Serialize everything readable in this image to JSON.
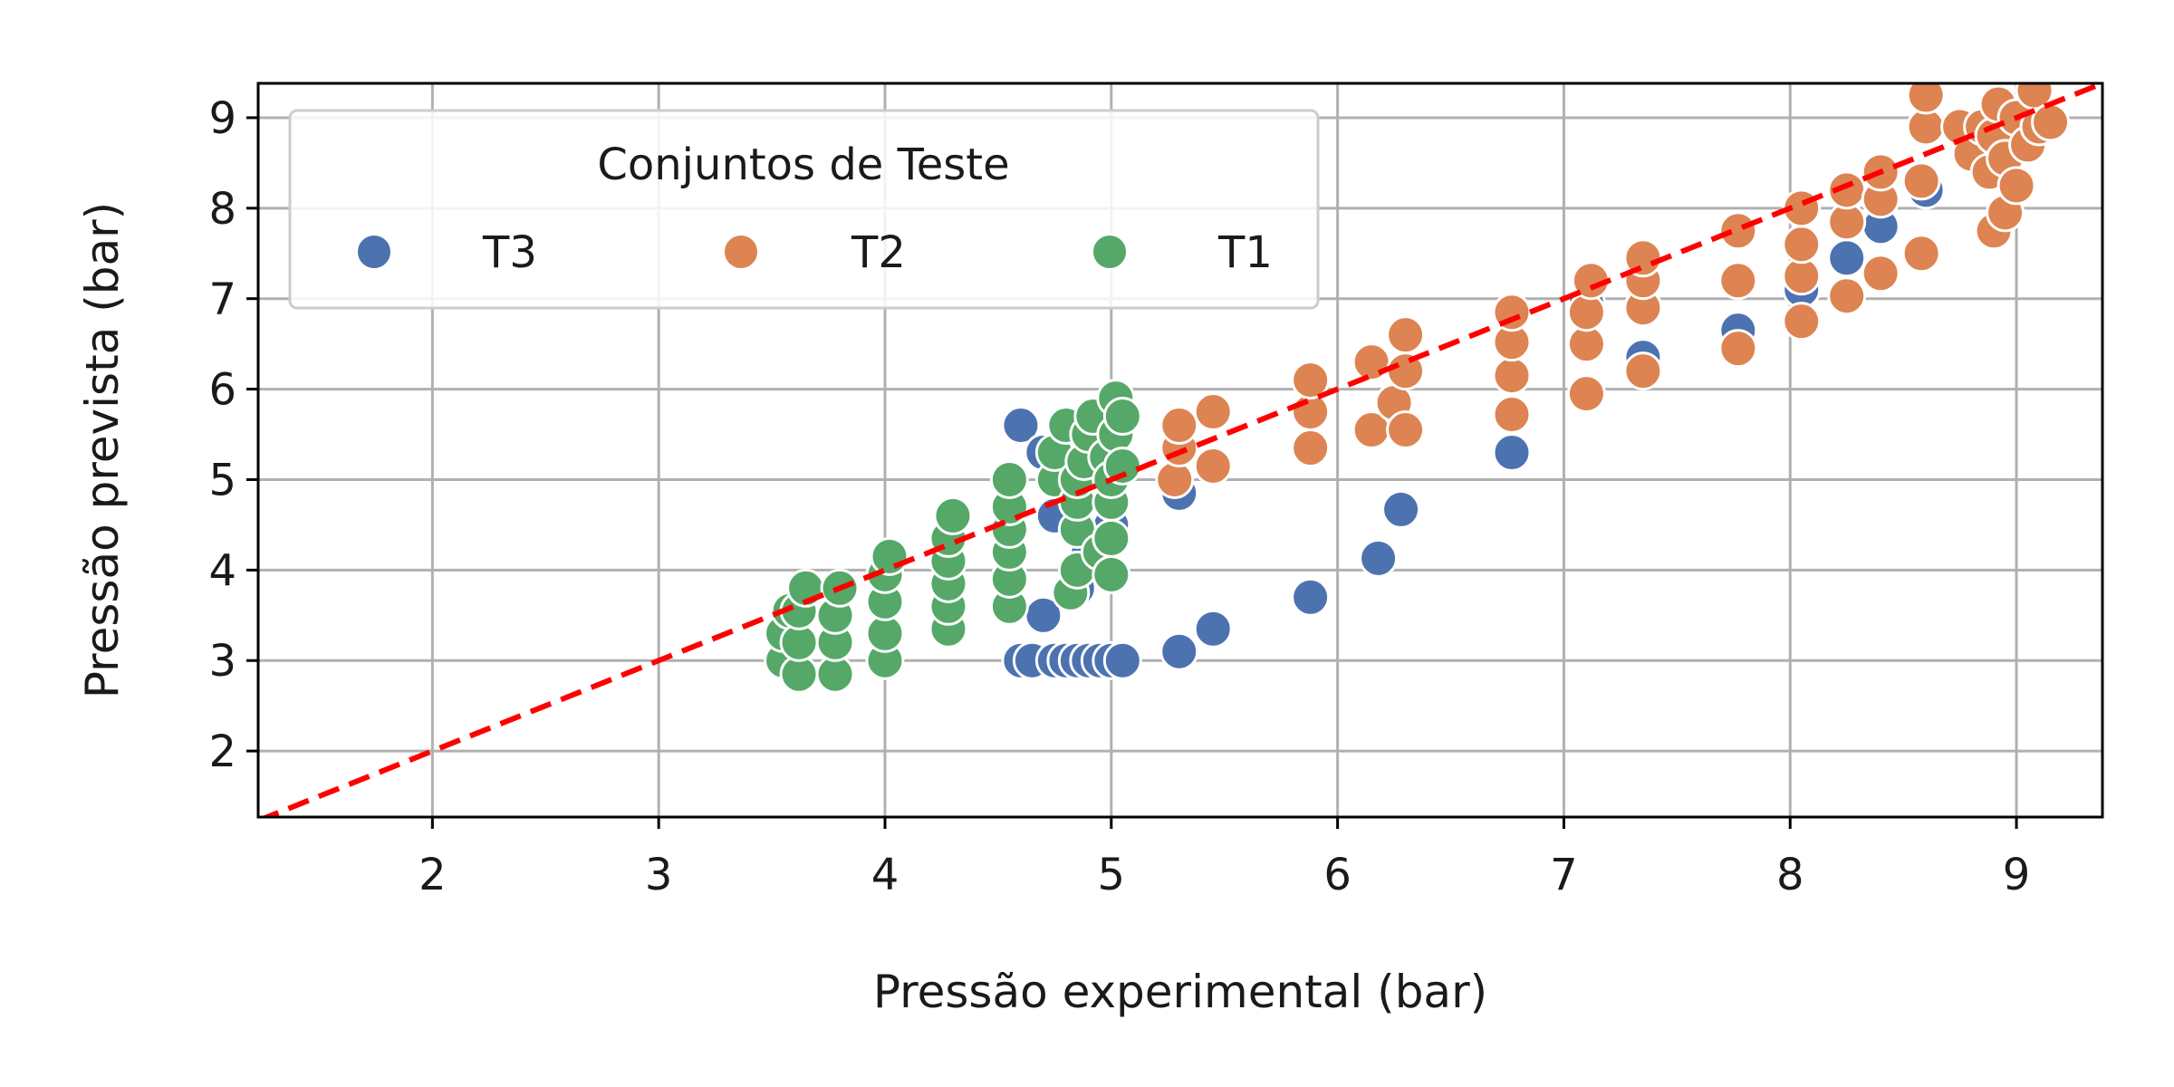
{
  "chart_data": {
    "type": "scatter",
    "title": "",
    "xlabel": "Pressão experimental (bar)",
    "ylabel": "Pressão prevista (bar)",
    "xlim": [
      1.23,
      9.38
    ],
    "ylim": [
      1.27,
      9.38
    ],
    "xticks": [
      "2",
      "3",
      "4",
      "5",
      "6",
      "7",
      "8",
      "9"
    ],
    "yticks": [
      "2",
      "3",
      "4",
      "5",
      "6",
      "7",
      "8",
      "9"
    ],
    "grid": true,
    "legend": {
      "title": "Conjuntos de Teste",
      "placement": "top-left"
    },
    "reference_line": {
      "type": "y=x",
      "style": "dashed",
      "color": "#ff0000"
    },
    "series": [
      {
        "name": "T3",
        "color": "#4c72b0",
        "points": [
          [
            4.6,
            5.6
          ],
          [
            4.6,
            3.0
          ],
          [
            4.65,
            3.0
          ],
          [
            4.7,
            3.5
          ],
          [
            4.75,
            3.0
          ],
          [
            4.75,
            4.6
          ],
          [
            4.8,
            3.0
          ],
          [
            4.85,
            3.0
          ],
          [
            4.9,
            3.0
          ],
          [
            4.95,
            3.0
          ],
          [
            5.0,
            3.0
          ],
          [
            5.05,
            3.0
          ],
          [
            4.85,
            3.8
          ],
          [
            4.9,
            4.2
          ],
          [
            5.0,
            4.5
          ],
          [
            4.7,
            5.3
          ],
          [
            5.3,
            4.85
          ],
          [
            5.3,
            3.1
          ],
          [
            5.45,
            3.35
          ],
          [
            5.88,
            3.7
          ],
          [
            6.18,
            4.13
          ],
          [
            6.28,
            4.67
          ],
          [
            6.77,
            5.3
          ],
          [
            7.1,
            6.95
          ],
          [
            7.35,
            6.35
          ],
          [
            7.77,
            6.65
          ],
          [
            8.05,
            7.1
          ],
          [
            8.25,
            7.45
          ],
          [
            8.4,
            7.8
          ],
          [
            8.6,
            8.2
          ],
          [
            8.9,
            8.45
          ],
          [
            9.0,
            8.7
          ],
          [
            9.1,
            9.05
          ]
        ]
      },
      {
        "name": "T2",
        "color": "#dd8452",
        "points": [
          [
            5.28,
            5.0
          ],
          [
            5.3,
            5.35
          ],
          [
            5.3,
            5.6
          ],
          [
            5.45,
            5.15
          ],
          [
            5.45,
            5.75
          ],
          [
            5.88,
            5.35
          ],
          [
            5.88,
            5.75
          ],
          [
            5.88,
            6.1
          ],
          [
            6.15,
            5.55
          ],
          [
            6.15,
            6.3
          ],
          [
            6.25,
            5.85
          ],
          [
            6.3,
            5.55
          ],
          [
            6.3,
            6.2
          ],
          [
            6.3,
            6.6
          ],
          [
            6.77,
            5.72
          ],
          [
            6.77,
            6.15
          ],
          [
            6.77,
            6.52
          ],
          [
            6.77,
            6.85
          ],
          [
            7.1,
            5.95
          ],
          [
            7.1,
            6.5
          ],
          [
            7.1,
            6.85
          ],
          [
            7.12,
            7.2
          ],
          [
            7.35,
            6.2
          ],
          [
            7.35,
            6.9
          ],
          [
            7.35,
            7.2
          ],
          [
            7.35,
            7.45
          ],
          [
            7.77,
            6.45
          ],
          [
            7.77,
            7.2
          ],
          [
            7.77,
            7.75
          ],
          [
            8.05,
            6.75
          ],
          [
            8.05,
            7.25
          ],
          [
            8.05,
            7.6
          ],
          [
            8.05,
            8.0
          ],
          [
            8.25,
            7.03
          ],
          [
            8.25,
            7.85
          ],
          [
            8.25,
            8.2
          ],
          [
            8.4,
            7.28
          ],
          [
            8.4,
            8.1
          ],
          [
            8.4,
            8.4
          ],
          [
            8.58,
            7.5
          ],
          [
            8.58,
            8.3
          ],
          [
            8.6,
            8.9
          ],
          [
            8.6,
            9.25
          ],
          [
            8.75,
            8.9
          ],
          [
            8.8,
            8.6
          ],
          [
            8.85,
            8.9
          ],
          [
            8.88,
            8.4
          ],
          [
            8.9,
            7.75
          ],
          [
            8.9,
            8.8
          ],
          [
            8.92,
            9.15
          ],
          [
            8.95,
            7.95
          ],
          [
            8.95,
            8.55
          ],
          [
            9.0,
            8.25
          ],
          [
            9.0,
            9.0
          ],
          [
            9.05,
            8.7
          ],
          [
            9.08,
            9.3
          ],
          [
            9.1,
            8.9
          ],
          [
            9.15,
            8.95
          ]
        ]
      },
      {
        "name": "T1",
        "color": "#55a868",
        "points": [
          [
            3.55,
            3.0
          ],
          [
            3.55,
            3.3
          ],
          [
            3.58,
            3.55
          ],
          [
            3.62,
            2.85
          ],
          [
            3.62,
            3.2
          ],
          [
            3.62,
            3.55
          ],
          [
            3.65,
            3.8
          ],
          [
            3.78,
            2.85
          ],
          [
            3.78,
            3.2
          ],
          [
            3.78,
            3.5
          ],
          [
            3.8,
            3.8
          ],
          [
            4.0,
            3.0
          ],
          [
            4.0,
            3.3
          ],
          [
            4.0,
            3.65
          ],
          [
            4.0,
            3.95
          ],
          [
            4.02,
            4.15
          ],
          [
            4.28,
            3.35
          ],
          [
            4.28,
            3.6
          ],
          [
            4.28,
            3.85
          ],
          [
            4.28,
            4.1
          ],
          [
            4.28,
            4.35
          ],
          [
            4.3,
            4.6
          ],
          [
            4.55,
            3.6
          ],
          [
            4.55,
            3.9
          ],
          [
            4.55,
            4.2
          ],
          [
            4.55,
            4.45
          ],
          [
            4.55,
            4.7
          ],
          [
            4.55,
            5.0
          ],
          [
            4.75,
            5.0
          ],
          [
            4.75,
            5.3
          ],
          [
            4.8,
            5.6
          ],
          [
            4.82,
            3.75
          ],
          [
            4.85,
            4.0
          ],
          [
            4.85,
            4.45
          ],
          [
            4.85,
            4.75
          ],
          [
            4.85,
            5.0
          ],
          [
            4.88,
            5.2
          ],
          [
            4.9,
            5.5
          ],
          [
            4.92,
            5.7
          ],
          [
            4.95,
            4.2
          ],
          [
            4.98,
            5.25
          ],
          [
            5.0,
            3.95
          ],
          [
            5.0,
            4.35
          ],
          [
            5.0,
            4.75
          ],
          [
            5.0,
            5.0
          ],
          [
            5.02,
            5.5
          ],
          [
            5.02,
            5.9
          ],
          [
            5.05,
            5.15
          ],
          [
            5.05,
            5.7
          ]
        ]
      }
    ]
  }
}
